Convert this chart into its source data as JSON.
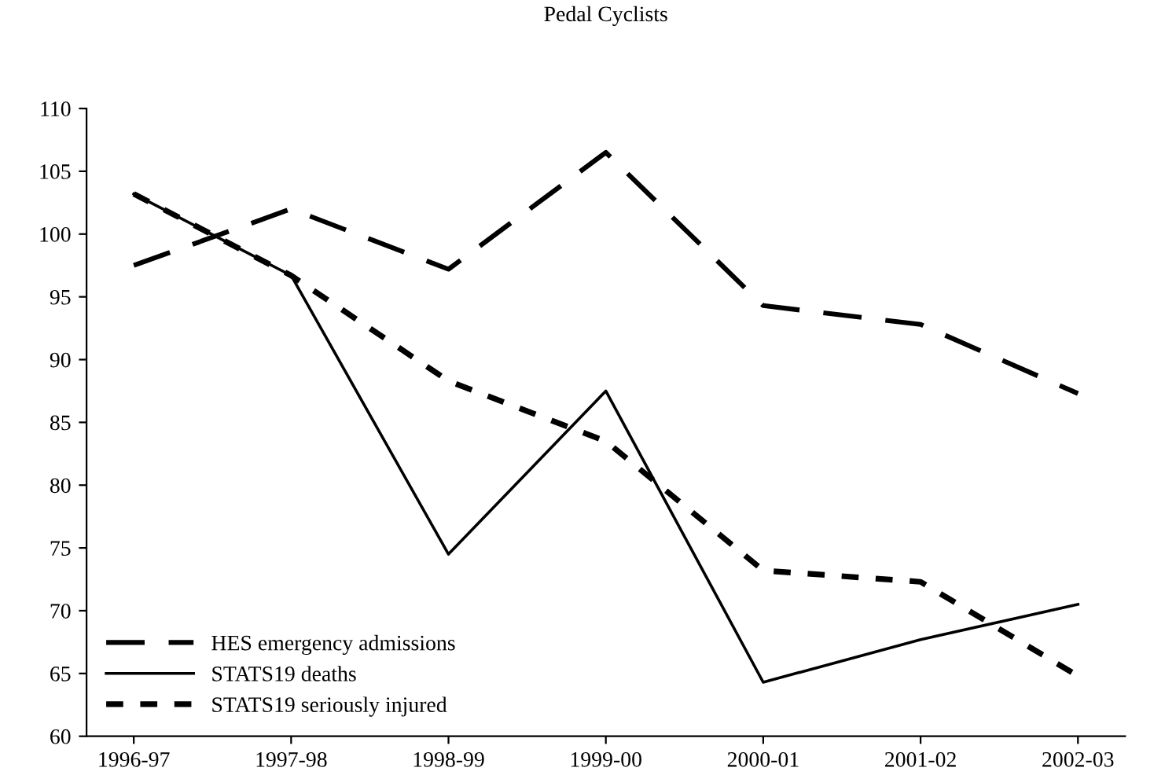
{
  "chart_data": {
    "type": "line",
    "title": "Pedal Cyclists",
    "categories": [
      "1996-97",
      "1997-98",
      "1998-99",
      "1999-00",
      "2000-01",
      "2001-02",
      "2002-03"
    ],
    "series": [
      {
        "name": "HES emergency admissions",
        "color": "#000000",
        "line_style": "dashed",
        "values": [
          97.5,
          102,
          97.2,
          106.5,
          94.3,
          92.8,
          87.3
        ]
      },
      {
        "name": "STATS19 deaths",
        "color": "#000000",
        "line_style": "solid",
        "values": [
          103.2,
          96.7,
          74.5,
          87.5,
          64.3,
          67.7,
          70.5
        ]
      },
      {
        "name": "STATS19 seriously injured",
        "color": "#000000",
        "line_style": "dotted",
        "values": [
          103.2,
          96.7,
          88.3,
          83.5,
          73.2,
          72.3,
          64.8
        ]
      }
    ],
    "ylim": [
      60,
      110
    ],
    "yticks": [
      60,
      65,
      70,
      75,
      80,
      85,
      90,
      95,
      100,
      105,
      110
    ],
    "grid": false,
    "legend": "bottom left",
    "marker": "none"
  }
}
